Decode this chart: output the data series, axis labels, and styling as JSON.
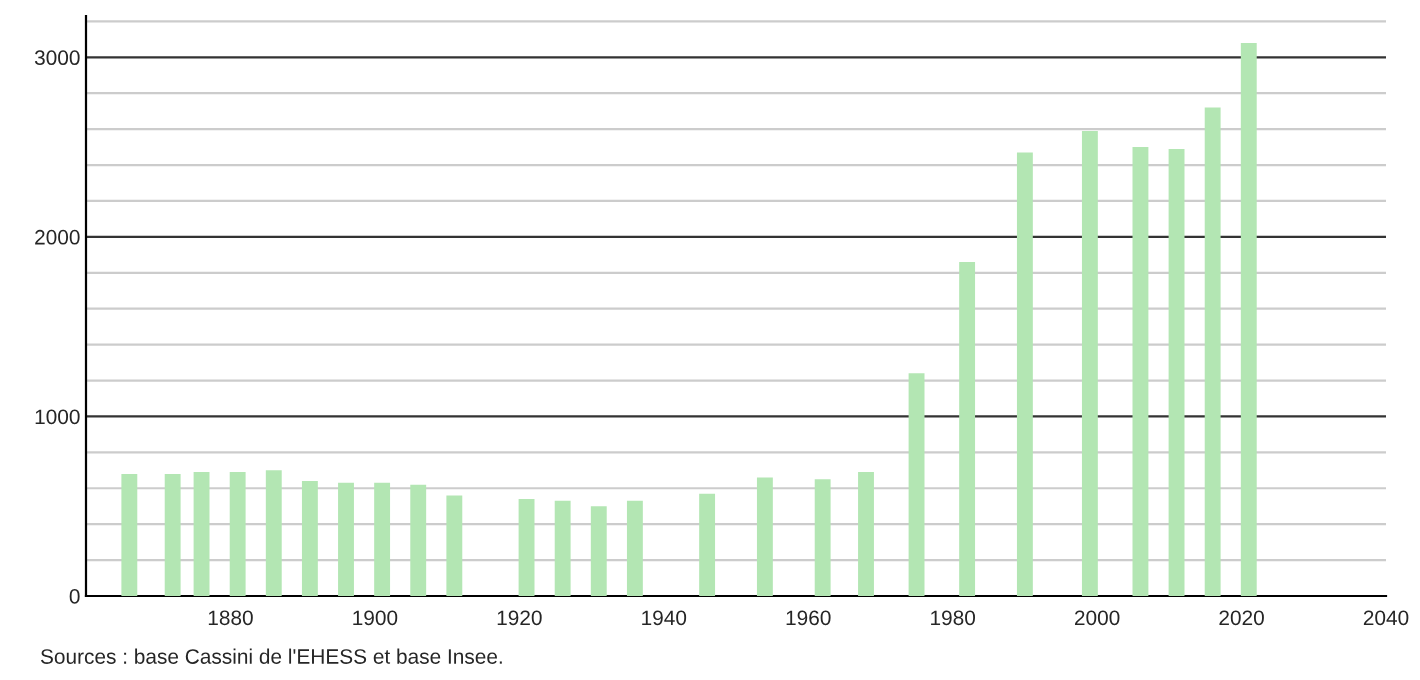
{
  "chart_data": {
    "type": "bar",
    "x": [
      1866,
      1872,
      1876,
      1881,
      1886,
      1891,
      1896,
      1901,
      1906,
      1911,
      1921,
      1926,
      1931,
      1936,
      1946,
      1954,
      1962,
      1968,
      1975,
      1982,
      1990,
      1999,
      2006,
      2011,
      2016,
      2021
    ],
    "values": [
      680,
      680,
      690,
      690,
      700,
      640,
      630,
      630,
      620,
      560,
      540,
      530,
      500,
      530,
      570,
      660,
      650,
      690,
      1240,
      1860,
      2470,
      2590,
      2500,
      2490,
      2720,
      3080
    ],
    "color": "#b3e6b3",
    "xlim": [
      1860,
      2040
    ],
    "xticks": [
      {
        "value": 1860,
        "label": null
      },
      1880,
      1900,
      1920,
      1940,
      1960,
      1980,
      2000,
      2020,
      2040
    ],
    "ylim": [
      0,
      3230
    ],
    "yticks": [
      0,
      {
        "value": 200,
        "label": null
      },
      {
        "value": 400,
        "label": null
      },
      {
        "value": 600,
        "label": null
      },
      {
        "value": 800,
        "label": null
      },
      1000,
      {
        "value": 1200,
        "label": null
      },
      {
        "value": 1400,
        "label": null
      },
      {
        "value": 1600,
        "label": null
      },
      {
        "value": 1800,
        "label": null
      },
      2000,
      {
        "value": 2200,
        "label": null
      },
      {
        "value": 2400,
        "label": null
      },
      {
        "value": 2600,
        "label": null
      },
      {
        "value": 2800,
        "label": null
      },
      3000,
      {
        "value": 3200,
        "label": null
      }
    ],
    "grid": "y",
    "annotations": [
      "Sources : base Cassini de l'EHESS et base Insee."
    ]
  }
}
